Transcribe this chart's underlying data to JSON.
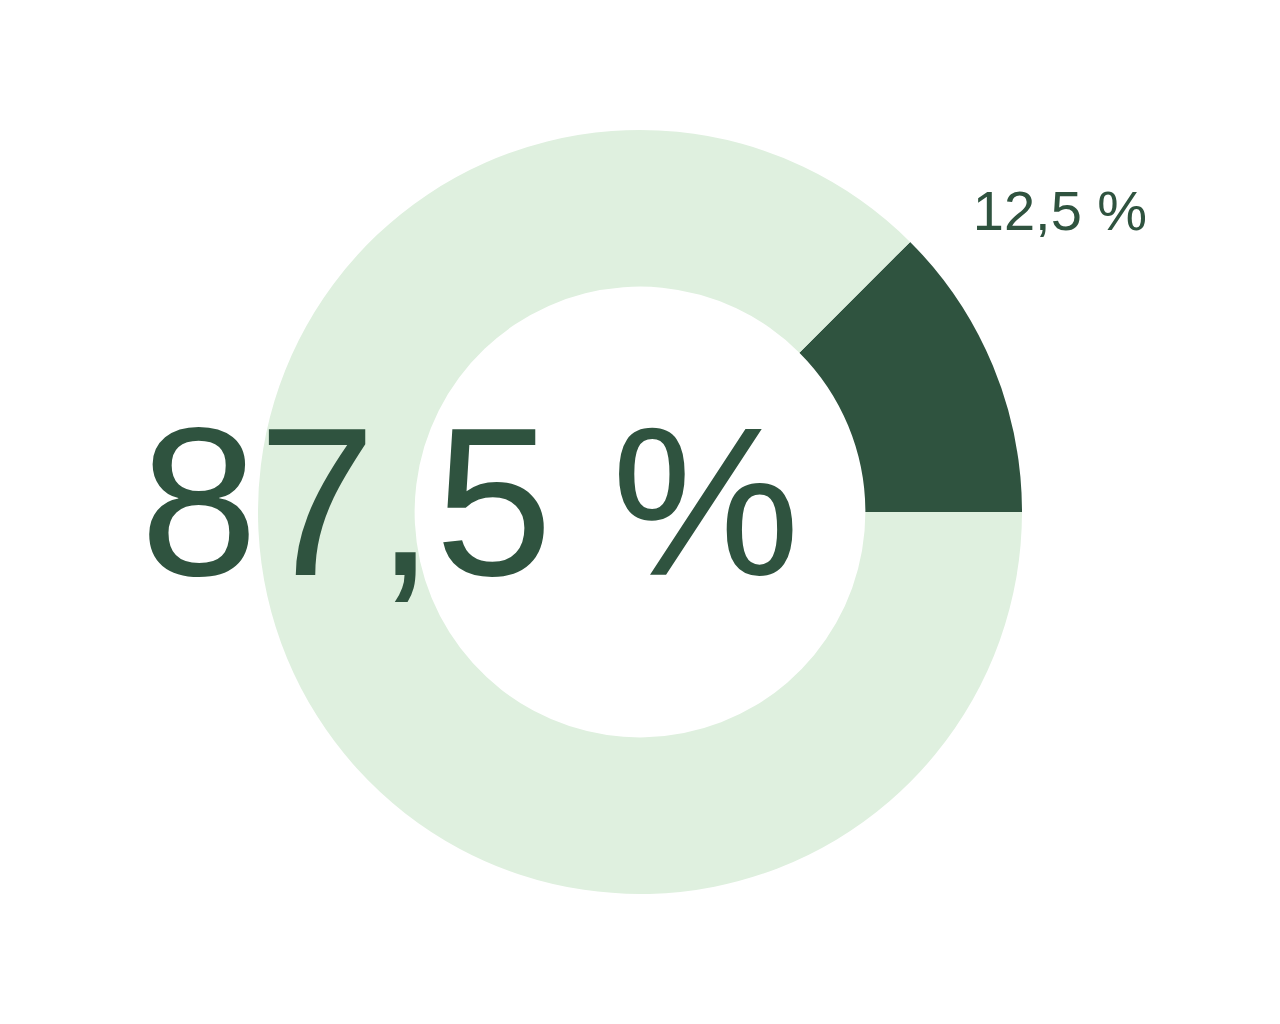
{
  "chart_data": {
    "type": "donut",
    "categories": [
      null,
      null
    ],
    "values": [
      12.5,
      87.5
    ],
    "colors": [
      "#2f533f",
      "#dff0df"
    ],
    "value_labels": [
      "12,5 %",
      "87,5 %"
    ],
    "legend": false
  }
}
